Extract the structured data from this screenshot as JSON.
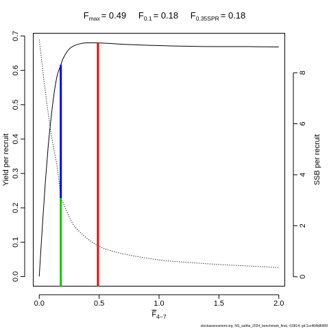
{
  "chart_data": {
    "type": "line",
    "title": {
      "fmax_symbol": "F",
      "fmax_sub": "max",
      "fmax_value": "= 0.49",
      "f01_symbol": "F",
      "f01_sub": "0.1",
      "f01_value": "= 0.18",
      "fspr_symbol": "F",
      "fspr_sub": "0.35SPR",
      "fspr_value": "= 0.18"
    },
    "xlabel": {
      "symbol": "F",
      "sub": "4−7"
    },
    "ylabel_left": "Yield per recruit",
    "ylabel_right": "SSB per recruit",
    "xlim": [
      -0.05,
      2.05
    ],
    "ylim_left": [
      -0.028,
      0.708
    ],
    "ylim_right": [
      -0.37,
      9.55
    ],
    "x_ticks": [
      0,
      0.5,
      1,
      1.5,
      2
    ],
    "x_tick_labels": [
      "0.0",
      "0.5",
      "1.0",
      "1.5",
      "2.0"
    ],
    "y_left_ticks": [
      0,
      0.1,
      0.2,
      0.3,
      0.4,
      0.5,
      0.6,
      0.7
    ],
    "y_left_tick_labels": [
      "0.0",
      "0.1",
      "0.2",
      "0.3",
      "0.4",
      "0.5",
      "0.6",
      "0.7"
    ],
    "y_right_ticks": [
      0,
      2,
      4,
      6,
      8
    ],
    "y_right_tick_labels": [
      "0",
      "2",
      "4",
      "6",
      "8"
    ],
    "series": [
      {
        "axis": "left",
        "style": "solid",
        "color": "#000000",
        "x": [
          0,
          0.025,
          0.05,
          0.075,
          0.1,
          0.125,
          0.15,
          0.18,
          0.2,
          0.25,
          0.3,
          0.35,
          0.4,
          0.45,
          0.49,
          0.6,
          0.75,
          1.0,
          1.25,
          1.5,
          1.75,
          2.0
        ],
        "y": [
          0,
          0.14,
          0.27,
          0.38,
          0.465,
          0.535,
          0.585,
          0.615,
          0.635,
          0.662,
          0.673,
          0.678,
          0.68,
          0.68,
          0.68,
          0.678,
          0.675,
          0.672,
          0.67,
          0.669,
          0.669,
          0.668
        ]
      },
      {
        "axis": "right",
        "style": "dotted",
        "color": "#000000",
        "x": [
          0,
          0.05,
          0.1,
          0.15,
          0.18,
          0.2,
          0.25,
          0.3,
          0.4,
          0.49,
          0.6,
          0.75,
          1.0,
          1.25,
          1.5,
          1.75,
          2.0
        ],
        "y": [
          9.3,
          7.3,
          5.6,
          4.3,
          3.15,
          2.9,
          2.35,
          1.95,
          1.5,
          1.22,
          1.02,
          0.85,
          0.66,
          0.56,
          0.48,
          0.42,
          0.36
        ]
      }
    ],
    "reference_lines": [
      {
        "name": "f0.1-ypr",
        "axis": "left",
        "x": 0.18,
        "y0": 0.228,
        "y1": 0.616,
        "color": "#0000ff"
      },
      {
        "name": "fspr-ssb",
        "axis": "left",
        "x": 0.18,
        "y0": -0.028,
        "y1": 0.228,
        "color": "#00cc00"
      },
      {
        "name": "fmax",
        "axis": "left",
        "x": 0.49,
        "y0": -0.028,
        "y1": 0.68,
        "color": "#ff0000"
      }
    ],
    "grid": false,
    "legend": "none"
  },
  "footer": "stockassessment.org, NS_saithe_2024_benchmark_final, r10814, git:1cc464b8086f"
}
